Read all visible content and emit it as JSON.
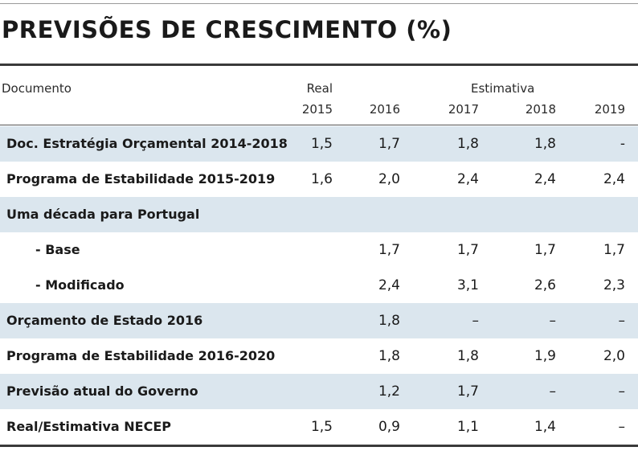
{
  "title": "PREVISÕES DE CRESCIMENTO (%)",
  "header": {
    "document_label": "Documento",
    "real_label": "Real",
    "estimativa_label": "Estimativa",
    "years": [
      "2015",
      "2016",
      "2017",
      "2018",
      "2019"
    ]
  },
  "rows": [
    {
      "label": "Doc. Estratégia Orçamental 2014-2018",
      "values": [
        "1,5",
        "1,7",
        "1,8",
        "1,8",
        "-"
      ]
    },
    {
      "label": "Programa de Estabilidade 2015-2019",
      "values": [
        "1,6",
        "2,0",
        "2,4",
        "2,4",
        "2,4"
      ]
    },
    {
      "label": "Uma década para Portugal",
      "values": [
        "",
        "",
        "",
        "",
        ""
      ]
    },
    {
      "label": "- Base",
      "values": [
        "",
        "1,7",
        "1,7",
        "1,7",
        "1,7"
      ]
    },
    {
      "label": "- Modificado",
      "values": [
        "",
        "2,4",
        "3,1",
        "2,6",
        "2,3"
      ]
    },
    {
      "label": "Orçamento de Estado 2016",
      "values": [
        "",
        "1,8",
        "–",
        "–",
        "–"
      ]
    },
    {
      "label": "Programa de Estabilidade 2016-2020",
      "values": [
        "",
        "1,8",
        "1,8",
        "1,9",
        "2,0"
      ]
    },
    {
      "label": "Previsão atual do Governo",
      "values": [
        "",
        "1,2",
        "1,7",
        "–",
        "–"
      ]
    },
    {
      "label": "Real/Estimativa NECEP",
      "values": [
        "1,5",
        "0,9",
        "1,1",
        "1,4",
        "–"
      ]
    }
  ]
}
